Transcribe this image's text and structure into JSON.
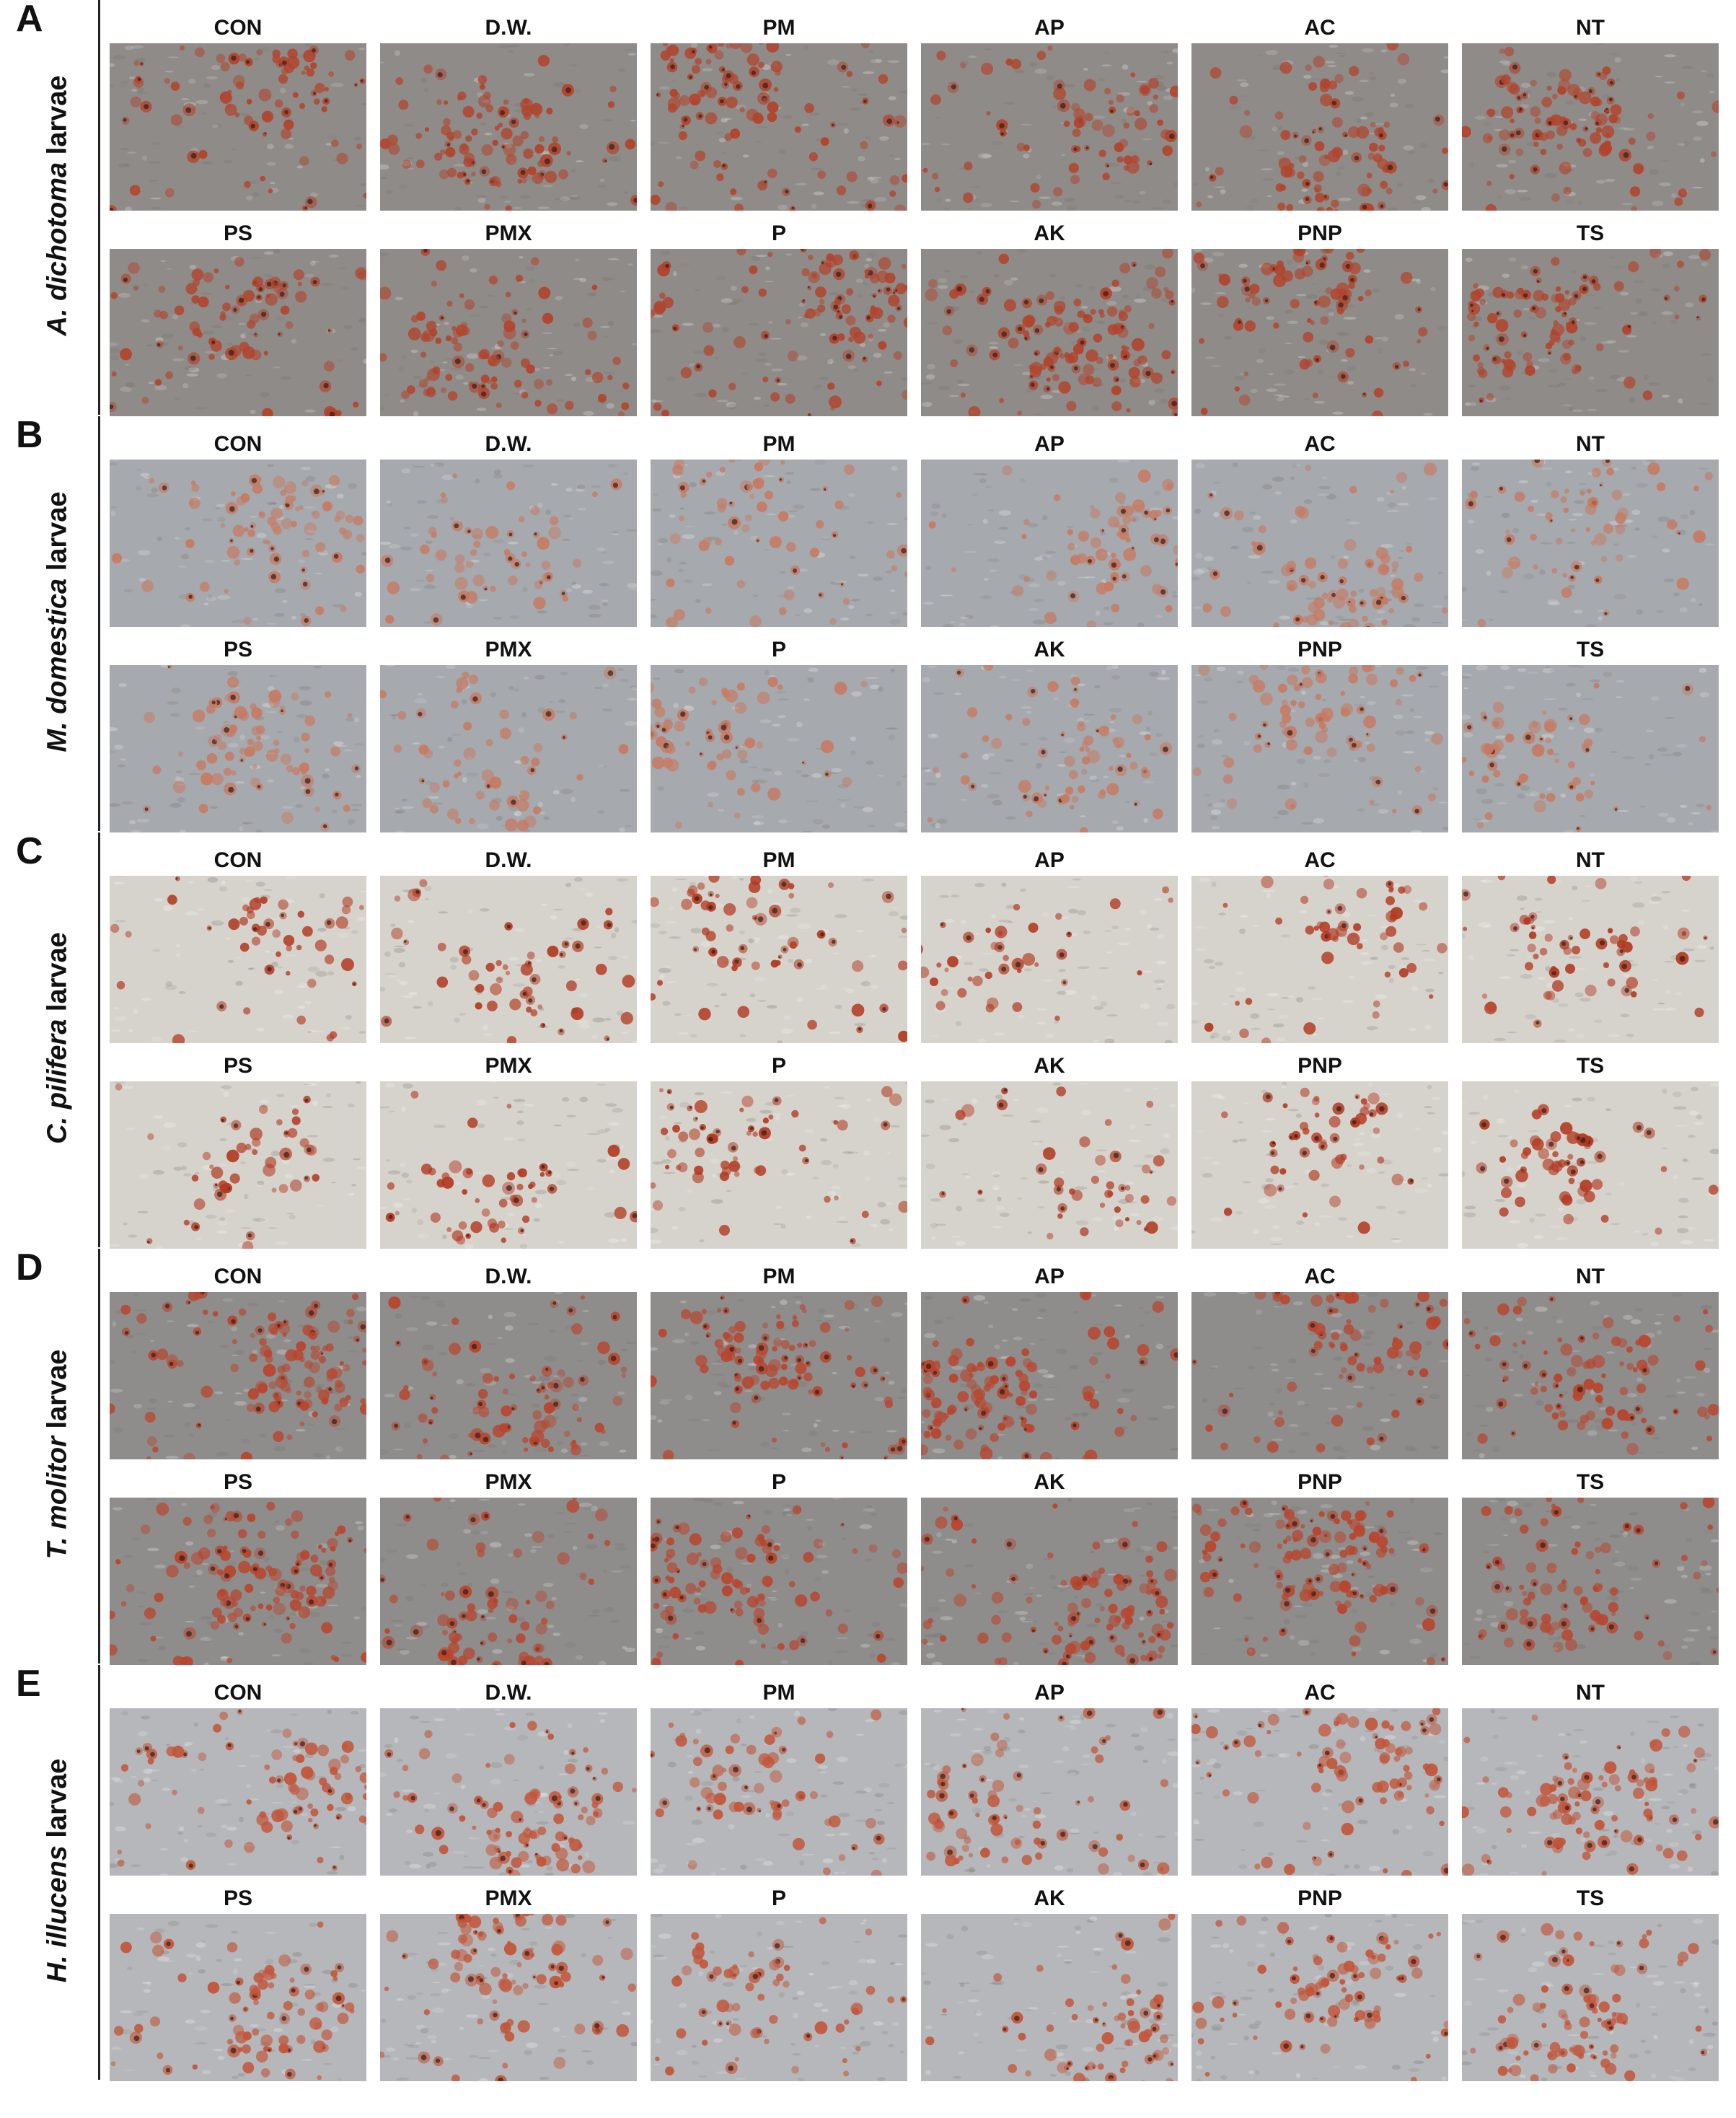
{
  "panels": [
    {
      "letter": "A",
      "species_italic": "A. dichotoma",
      "species_suffix": " larvae",
      "background": "#8f8b88",
      "stain": "#b2432c",
      "density": 0.9,
      "row1": [
        "CON",
        "D.W.",
        "PM",
        "AP",
        "AC",
        "NT"
      ],
      "row2": [
        "PS",
        "PMX",
        "P",
        "AK",
        "PNP",
        "TS"
      ]
    },
    {
      "letter": "B",
      "species_italic": "M. domestica",
      "species_suffix": " larvae",
      "background": "#a6a9ad",
      "stain": "#c77a63",
      "density": 0.55,
      "row1": [
        "CON",
        "D.W.",
        "PM",
        "AP",
        "AC",
        "NT"
      ],
      "row2": [
        "PS",
        "PMX",
        "P",
        "AK",
        "PNP",
        "TS"
      ]
    },
    {
      "letter": "C",
      "species_italic": "C. pilifera",
      "species_suffix": " larvae",
      "background": "#d6d3cd",
      "stain": "#b23a22",
      "density": 0.35,
      "row1": [
        "CON",
        "D.W.",
        "PM",
        "AP",
        "AC",
        "NT"
      ],
      "row2": [
        "PS",
        "PMX",
        "P",
        "AK",
        "PNP",
        "TS"
      ]
    },
    {
      "letter": "D",
      "species_italic": "T. molitor",
      "species_suffix": " larvae",
      "background": "#8e8d8c",
      "stain": "#b8452e",
      "density": 0.9,
      "row1": [
        "CON",
        "D.W.",
        "PM",
        "AP",
        "AC",
        "NT"
      ],
      "row2": [
        "PS",
        "PMX",
        "P",
        "AK",
        "PNP",
        "TS"
      ]
    },
    {
      "letter": "E",
      "species_italic": "H. illucens",
      "species_suffix": " larvae",
      "background": "#b5b7ba",
      "stain": "#c2553a",
      "density": 0.7,
      "row1": [
        "CON",
        "D.W.",
        "PM",
        "AP",
        "AC",
        "NT"
      ],
      "row2": [
        "PS",
        "PMX",
        "P",
        "AK",
        "PNP",
        "TS"
      ]
    }
  ]
}
